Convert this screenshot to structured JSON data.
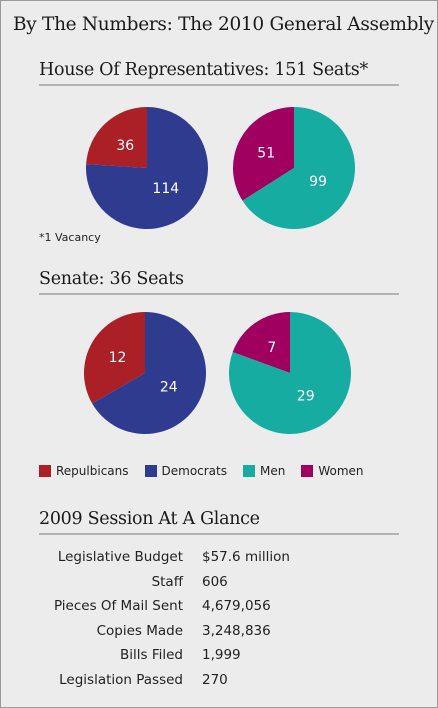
{
  "title": "By The Numbers: The 2010 General Assembly",
  "colors": {
    "republicans": "#ab2027",
    "democrats": "#2e3b8f",
    "men": "#16aca2",
    "women": "#a0005f"
  },
  "chart_data": [
    {
      "type": "pie",
      "title": "House Of Representatives: 151 Seats*",
      "categories": [
        "Republicans",
        "Democrats"
      ],
      "values": [
        36,
        114
      ]
    },
    {
      "type": "pie",
      "title": "House Of Representatives: 151 Seats*",
      "categories": [
        "Women",
        "Men"
      ],
      "values": [
        51,
        99
      ]
    },
    {
      "type": "pie",
      "title": "Senate: 36 Seats",
      "categories": [
        "Republicans",
        "Democrats"
      ],
      "values": [
        12,
        24
      ]
    },
    {
      "type": "pie",
      "title": "Senate: 36 Seats",
      "categories": [
        "Women",
        "Men"
      ],
      "values": [
        7,
        29
      ]
    }
  ],
  "house": {
    "heading": "House Of Representatives: 151 Seats*",
    "note": "*1 Vacancy"
  },
  "senate": {
    "heading": "Senate: 36 Seats"
  },
  "legend": [
    {
      "label": "Repulbicans",
      "color_key": "republicans"
    },
    {
      "label": "Democrats",
      "color_key": "democrats"
    },
    {
      "label": "Men",
      "color_key": "men"
    },
    {
      "label": "Women",
      "color_key": "women"
    }
  ],
  "session": {
    "heading": "2009 Session At A Glance",
    "rows": [
      {
        "label": "Legislative Budget",
        "value": "$57.6 million"
      },
      {
        "label": "Staff",
        "value": "606"
      },
      {
        "label": "Pieces Of Mail Sent",
        "value": "4,679,056"
      },
      {
        "label": "Copies Made",
        "value": "3,248,836"
      },
      {
        "label": "Bills Filed",
        "value": "1,999"
      },
      {
        "label": "Legislation Passed",
        "value": "270"
      }
    ]
  }
}
